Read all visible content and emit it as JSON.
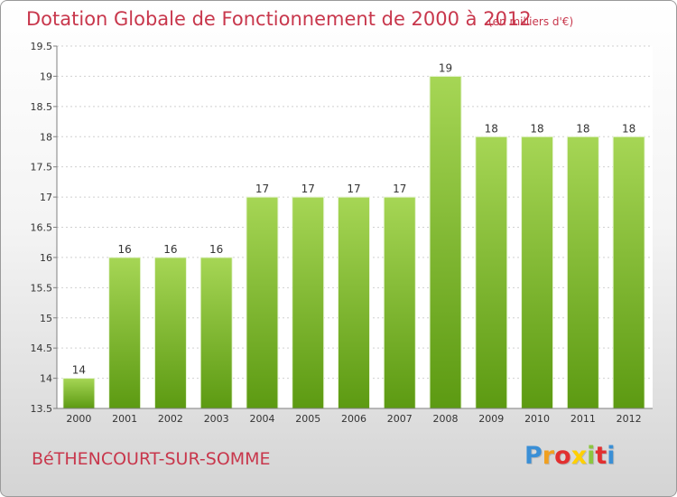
{
  "title": "Dotation Globale de Fonctionnement de 2000 à 2012",
  "subtitle": "(en milliers d'€)",
  "commune": "BéTHENCOURT-SUR-SOMME",
  "logo": {
    "text": "Proxiti",
    "letters": [
      "P",
      "r",
      "o",
      "x",
      "i",
      "t",
      "i"
    ],
    "colors": [
      "#3a8fd6",
      "#f0a020",
      "#e23030",
      "#ffd000",
      "#8cc63f",
      "#e23030",
      "#3a8fd6"
    ]
  },
  "chart_data": {
    "type": "bar",
    "categories": [
      "2000",
      "2001",
      "2002",
      "2003",
      "2004",
      "2005",
      "2006",
      "2007",
      "2008",
      "2009",
      "2010",
      "2011",
      "2012"
    ],
    "values": [
      14,
      16,
      16,
      16,
      17,
      17,
      17,
      17,
      19,
      18,
      18,
      18,
      18
    ],
    "data_labels": [
      "14",
      "16",
      "16",
      "16",
      "17",
      "17",
      "17",
      "17",
      "19",
      "18",
      "18",
      "18",
      "18"
    ],
    "title": "Dotation Globale de Fonctionnement de 2000 à 2012",
    "ylim": [
      13.5,
      19.5
    ],
    "yticks": [
      13.5,
      14,
      14.5,
      15,
      15.5,
      16,
      16.5,
      17,
      17.5,
      18,
      18.5,
      19,
      19.5
    ],
    "ytick_labels": [
      "13.5",
      "14",
      "14.5",
      "15",
      "15.5",
      "16",
      "16.5",
      "17",
      "17.5",
      "18",
      "18.5",
      "19",
      "19.5"
    ],
    "grid": true,
    "bar_color": "#7cbf2a"
  }
}
